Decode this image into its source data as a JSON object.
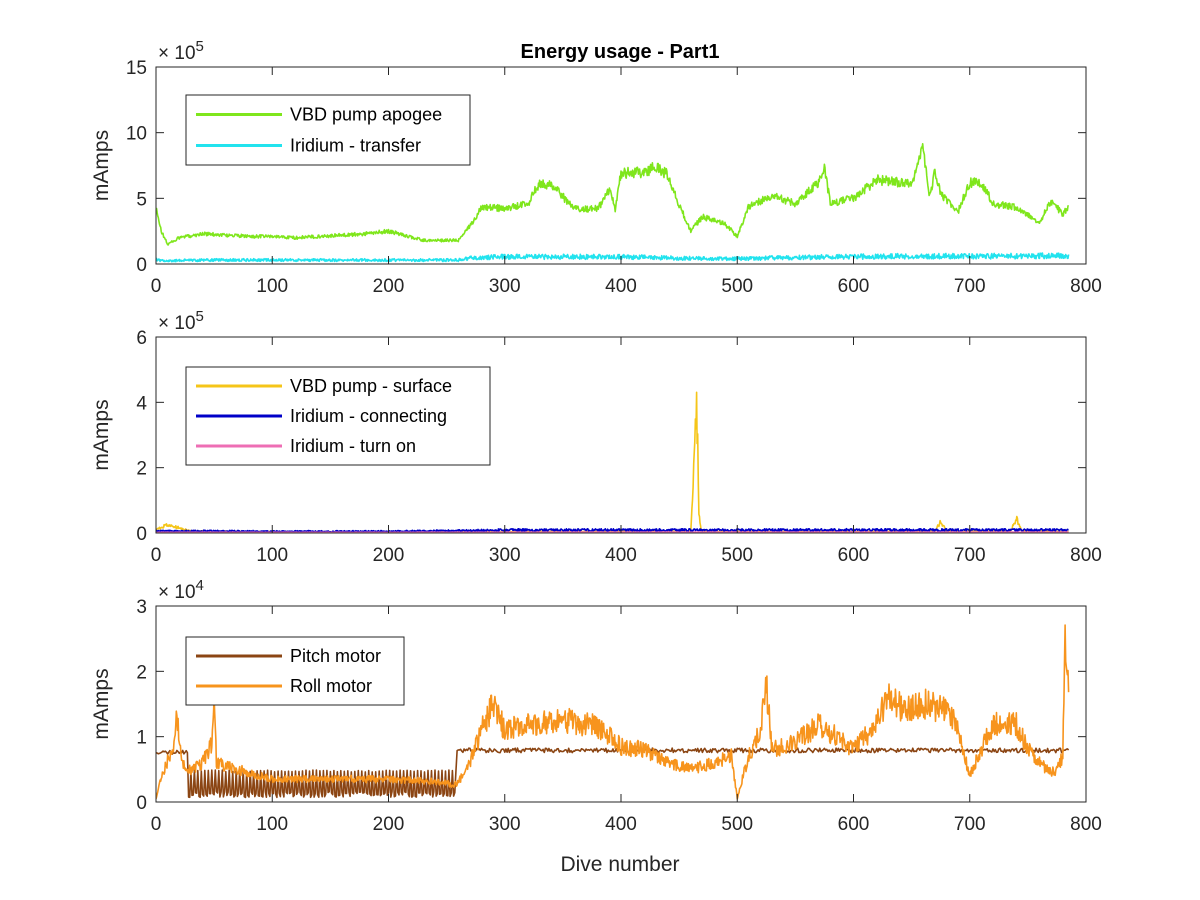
{
  "figure": {
    "title": "Energy usage - Part1",
    "xlabel": "Dive number"
  },
  "chart_data": [
    {
      "type": "line",
      "title": "Energy usage - Part1",
      "xlabel": "",
      "ylabel": "mAmps",
      "xlim": [
        0,
        800
      ],
      "ylim": [
        0,
        1500000
      ],
      "xticks": [
        "0",
        "100",
        "200",
        "300",
        "400",
        "500",
        "600",
        "700",
        "800"
      ],
      "yticks": [
        "0",
        "5",
        "10",
        "15"
      ],
      "y_multiplier": "× 10",
      "y_multiplier_exp": "5",
      "legend_position": "top-left",
      "grid": false,
      "series": [
        {
          "name": "VBD pump apogee",
          "color": "#7fe61c",
          "noise": 0.06,
          "x": [
            0,
            5,
            10,
            20,
            40,
            60,
            80,
            100,
            120,
            150,
            180,
            200,
            230,
            260,
            265,
            275,
            280,
            300,
            320,
            330,
            340,
            345,
            360,
            380,
            390,
            395,
            400,
            420,
            430,
            440,
            450,
            460,
            470,
            490,
            500,
            510,
            530,
            550,
            570,
            575,
            580,
            600,
            620,
            640,
            650,
            660,
            665,
            670,
            675,
            690,
            700,
            710,
            720,
            740,
            760,
            770,
            780,
            785
          ],
          "y": [
            420000,
            240000,
            150000,
            200000,
            230000,
            220000,
            210000,
            210000,
            200000,
            215000,
            230000,
            250000,
            180000,
            180000,
            230000,
            350000,
            440000,
            420000,
            460000,
            620000,
            600000,
            560000,
            420000,
            420000,
            560000,
            420000,
            690000,
            700000,
            740000,
            680000,
            450000,
            250000,
            360000,
            300000,
            210000,
            440000,
            520000,
            460000,
            620000,
            750000,
            460000,
            500000,
            640000,
            620000,
            600000,
            900000,
            500000,
            700000,
            530000,
            400000,
            620000,
            620000,
            460000,
            430000,
            320000,
            480000,
            380000,
            440000
          ]
        },
        {
          "name": "Iridium - transfer",
          "color": "#22e3ee",
          "noise": 0.35,
          "x": [
            0,
            5,
            50,
            100,
            150,
            200,
            260,
            270,
            300,
            350,
            400,
            450,
            500,
            550,
            600,
            650,
            700,
            740,
            785
          ],
          "y": [
            40000,
            25000,
            30000,
            30000,
            30000,
            30000,
            30000,
            45000,
            55000,
            55000,
            55000,
            45000,
            40000,
            50000,
            55000,
            60000,
            60000,
            60000,
            65000
          ]
        }
      ]
    },
    {
      "type": "line",
      "title": "",
      "xlabel": "",
      "ylabel": "mAmps",
      "xlim": [
        0,
        800
      ],
      "ylim": [
        0,
        600000
      ],
      "xticks": [
        "0",
        "100",
        "200",
        "300",
        "400",
        "500",
        "600",
        "700",
        "800"
      ],
      "yticks": [
        "0",
        "2",
        "4",
        "6"
      ],
      "y_multiplier": "× 10",
      "y_multiplier_exp": "5",
      "legend_position": "top-left",
      "grid": false,
      "series": [
        {
          "name": "VBD pump - surface",
          "color": "#f5c518",
          "noise": 0.25,
          "x": [
            0,
            5,
            10,
            30,
            100,
            200,
            300,
            400,
            460,
            463,
            465,
            467,
            469,
            470,
            520,
            600,
            670,
            675,
            680,
            735,
            740,
            745,
            785
          ],
          "y": [
            10000,
            18000,
            25000,
            6000,
            4000,
            3000,
            4000,
            5000,
            5000,
            220000,
            440000,
            60000,
            5000,
            5000,
            4000,
            4000,
            5000,
            35000,
            5000,
            5000,
            45000,
            6000,
            4000
          ]
        },
        {
          "name": "Iridium - connecting",
          "color": "#0000c8",
          "noise": 0.45,
          "x": [
            0,
            50,
            100,
            200,
            260,
            300,
            400,
            500,
            600,
            700,
            785
          ],
          "y": [
            6000,
            6000,
            5000,
            5000,
            7000,
            9000,
            9000,
            9000,
            9000,
            9000,
            9000
          ]
        },
        {
          "name": "Iridium - turn on",
          "color": "#ee6eb4",
          "noise": 0.3,
          "x": [
            0,
            200,
            400,
            600,
            785
          ],
          "y": [
            2000,
            2000,
            2500,
            2500,
            2500
          ]
        }
      ]
    },
    {
      "type": "line",
      "title": "",
      "xlabel": "Dive number",
      "ylabel": "mAmps",
      "xlim": [
        0,
        800
      ],
      "ylim": [
        0,
        30000
      ],
      "xticks": [
        "0",
        "100",
        "200",
        "300",
        "400",
        "500",
        "600",
        "700",
        "800"
      ],
      "yticks": [
        "0",
        "1",
        "2",
        "3"
      ],
      "y_multiplier": "× 10",
      "y_multiplier_exp": "4",
      "legend_position": "top-left",
      "grid": false,
      "series": [
        {
          "name": "Pitch motor",
          "color": "#8b4513",
          "pattern": "pitch",
          "x": [
            0,
            28,
            30,
            258,
            260,
            785
          ],
          "y": [
            7800,
            7800,
            2500,
            2500,
            8000,
            8000
          ]
        },
        {
          "name": "Roll motor",
          "color": "#f7941d",
          "noise": 0.16,
          "x": [
            0,
            3,
            8,
            15,
            18,
            22,
            30,
            40,
            48,
            50,
            52,
            60,
            80,
            100,
            150,
            200,
            250,
            255,
            260,
            270,
            280,
            290,
            300,
            320,
            350,
            380,
            400,
            420,
            440,
            460,
            480,
            495,
            500,
            505,
            510,
            520,
            525,
            530,
            550,
            570,
            600,
            620,
            630,
            640,
            660,
            680,
            690,
            700,
            705,
            710,
            720,
            740,
            750,
            760,
            770,
            775,
            780,
            782,
            785
          ],
          "y": [
            500,
            3000,
            5500,
            8000,
            14000,
            6000,
            5000,
            6000,
            9000,
            15000,
            6000,
            5500,
            4500,
            3500,
            3500,
            3500,
            3000,
            2500,
            3000,
            6000,
            11000,
            15000,
            11000,
            12000,
            12500,
            11500,
            8500,
            8000,
            6000,
            5000,
            6000,
            7000,
            500,
            4000,
            7000,
            11000,
            18000,
            8000,
            9000,
            12000,
            8000,
            12000,
            16000,
            14500,
            15000,
            14000,
            11000,
            4000,
            6000,
            8000,
            12000,
            12000,
            8000,
            6000,
            4500,
            5000,
            7000,
            24000,
            19000
          ]
        }
      ]
    }
  ]
}
